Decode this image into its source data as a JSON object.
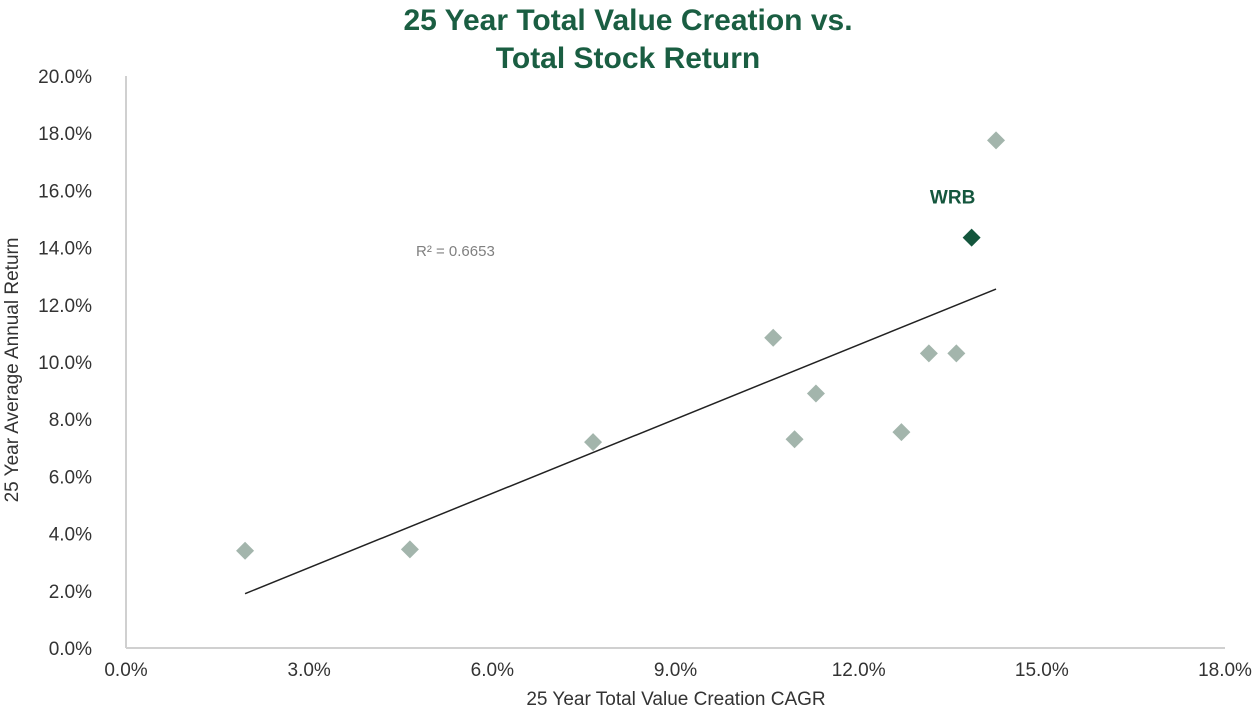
{
  "chart_data": {
    "type": "scatter",
    "title": [
      "25 Year Total Value Creation vs.",
      "Total Stock Return"
    ],
    "xlabel": "25 Year Total Value Creation CAGR",
    "ylabel": "25 Year Average Annual Return",
    "xlim": [
      0,
      18
    ],
    "ylim": [
      0,
      20
    ],
    "x_ticks": [
      0,
      3,
      6,
      9,
      12,
      15,
      18
    ],
    "x_tick_labels": [
      "0.0%",
      "3.0%",
      "6.0%",
      "9.0%",
      "12.0%",
      "15.0%",
      "18.0%"
    ],
    "y_ticks": [
      0,
      2,
      4,
      6,
      8,
      10,
      12,
      14,
      16,
      18,
      20
    ],
    "y_tick_labels": [
      "0.0%",
      "2.0%",
      "4.0%",
      "6.0%",
      "8.0%",
      "10.0%",
      "12.0%",
      "14.0%",
      "16.0%",
      "18.0%",
      "20.0%"
    ],
    "grid": false,
    "points": [
      {
        "x": 1.95,
        "y": 3.4
      },
      {
        "x": 4.65,
        "y": 3.45
      },
      {
        "x": 7.65,
        "y": 7.2
      },
      {
        "x": 10.6,
        "y": 10.85
      },
      {
        "x": 10.95,
        "y": 7.3
      },
      {
        "x": 11.3,
        "y": 8.9
      },
      {
        "x": 12.7,
        "y": 7.55
      },
      {
        "x": 13.15,
        "y": 10.3
      },
      {
        "x": 13.6,
        "y": 10.3
      },
      {
        "x": 14.25,
        "y": 17.75
      }
    ],
    "highlight": {
      "label": "WRB",
      "x": 13.85,
      "y": 14.35
    },
    "trendline": {
      "x1": 1.95,
      "y1": 1.9,
      "x2": 14.25,
      "y2": 12.55
    },
    "r_squared_label": "R² = 0.6653",
    "colors": {
      "title": "#1a5e42",
      "point": "#a3b5ac",
      "highlight": "#14563d",
      "trendline": "#222222",
      "axis": "#d0d0d0"
    }
  }
}
